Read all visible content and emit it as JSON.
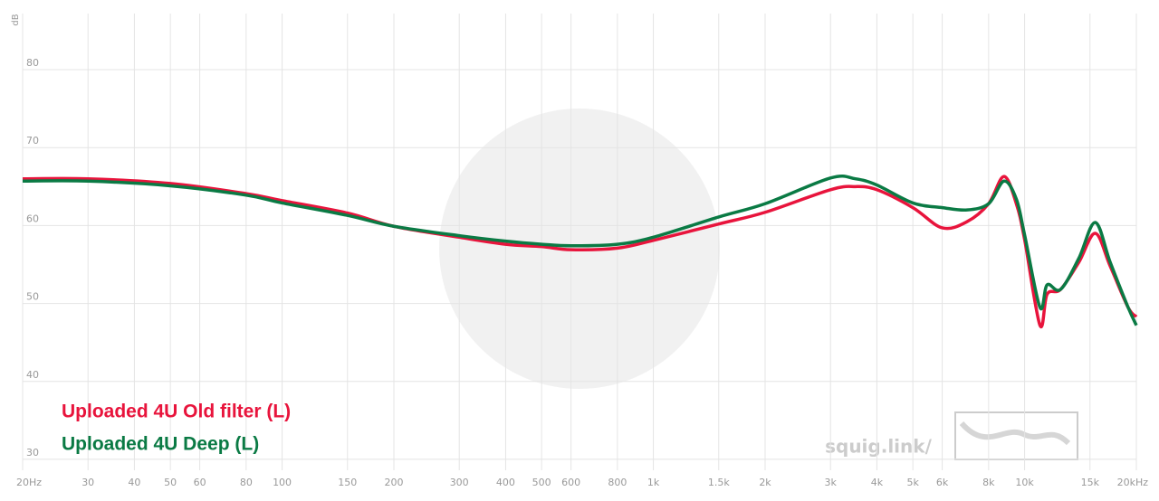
{
  "chart_data": {
    "type": "line",
    "y_label": "dB",
    "log_x": true,
    "grid": true,
    "watermark": "squig.link/",
    "xlim": [
      20,
      20000
    ],
    "ylim": [
      28.6,
      87.2
    ],
    "xticks": [
      {
        "value": 20,
        "label": "20Hz"
      },
      30,
      40,
      50,
      60,
      80,
      100,
      150,
      200,
      300,
      400,
      500,
      600,
      800,
      {
        "value": 1000,
        "label": "1k"
      },
      {
        "value": 1500,
        "label": "1.5k"
      },
      {
        "value": 2000,
        "label": "2k"
      },
      {
        "value": 3000,
        "label": "3k"
      },
      {
        "value": 4000,
        "label": "4k"
      },
      {
        "value": 5000,
        "label": "5k"
      },
      {
        "value": 6000,
        "label": "6k"
      },
      {
        "value": 8000,
        "label": "8k"
      },
      {
        "value": 10000,
        "label": "10k"
      },
      {
        "value": 15000,
        "label": "15k"
      },
      {
        "value": 20000,
        "label": "20kHz"
      }
    ],
    "yticks": [
      30,
      40,
      50,
      60,
      70,
      80
    ],
    "x": [
      20,
      30,
      50,
      80,
      100,
      150,
      200,
      300,
      400,
      500,
      600,
      800,
      1000,
      1500,
      2000,
      3000,
      3500,
      4000,
      5000,
      6000,
      7000,
      8000,
      8800,
      9500,
      10000,
      11000,
      11500,
      12500,
      14000,
      15500,
      17000,
      19000,
      20000
    ],
    "series": [
      {
        "name": "Uploaded 4U Old filter (L)",
        "color": "#e8143c",
        "values": [
          66.0,
          66.0,
          65.4,
          64.1,
          63.2,
          61.6,
          59.9,
          58.5,
          57.6,
          57.3,
          56.9,
          57.1,
          58.1,
          60.2,
          61.7,
          64.6,
          65.0,
          64.6,
          62.3,
          59.7,
          60.5,
          62.8,
          66.3,
          62.8,
          58.2,
          47.2,
          51.2,
          51.8,
          55.3,
          59.0,
          54.8,
          49.5,
          48.3
        ]
      },
      {
        "name": "Uploaded 4U Deep (L)",
        "color": "#0a7a44",
        "values": [
          65.7,
          65.7,
          65.1,
          63.9,
          62.9,
          61.3,
          59.9,
          58.7,
          58.0,
          57.6,
          57.4,
          57.6,
          58.5,
          61.1,
          62.8,
          66.1,
          66.0,
          65.2,
          62.9,
          62.3,
          62.0,
          62.8,
          65.7,
          63.4,
          58.8,
          49.5,
          52.4,
          51.8,
          55.8,
          60.4,
          55.3,
          49.5,
          47.2
        ]
      }
    ]
  }
}
